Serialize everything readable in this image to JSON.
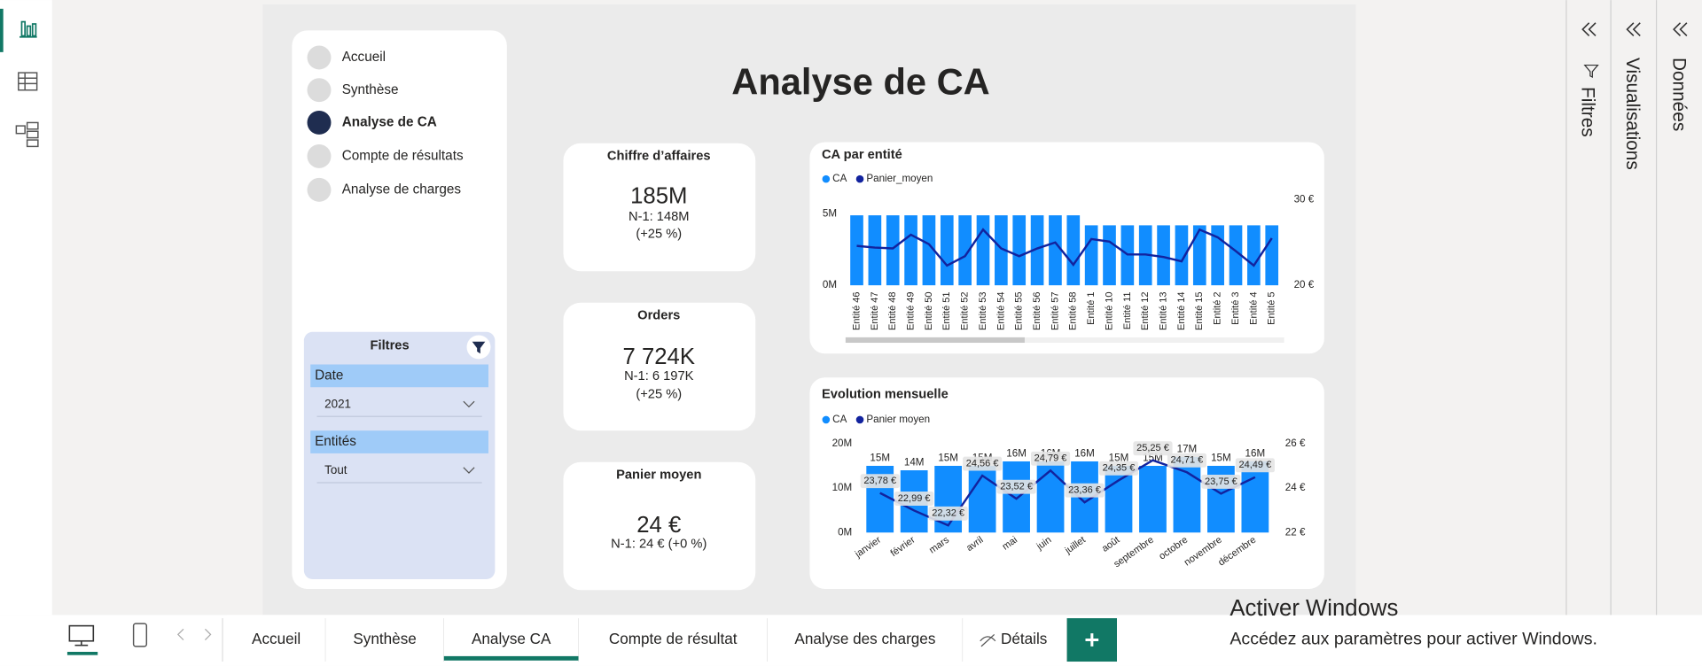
{
  "nav": {
    "items": [
      "Accueil",
      "Synthèse",
      "Analyse de CA",
      "Compte de résultats",
      "Analyse de charges"
    ],
    "active": 2
  },
  "title": "Analyse de CA",
  "filters": {
    "title": "Filtres",
    "fields": [
      {
        "label": "Date",
        "value": "2021"
      },
      {
        "label": "Entités",
        "value": "Tout"
      }
    ]
  },
  "kpis": [
    {
      "title": "Chiffre d’affaires",
      "value": "185M",
      "prior": "N-1: 148M",
      "change": "(+25 %)"
    },
    {
      "title": "Orders",
      "value": "7 724K",
      "prior": "N-1: 6 197K",
      "change": "(+25 %)"
    },
    {
      "title": "Panier moyen",
      "value": "24 €",
      "prior": "N-1: 24 € (+0 %)"
    }
  ],
  "chart_data": [
    {
      "type": "combo",
      "title": "CA par entité",
      "categories": [
        "Entité 46",
        "Entité 47",
        "Entité 48",
        "Entité 49",
        "Entité 50",
        "Entité 51",
        "Entité 52",
        "Entité 53",
        "Entité 54",
        "Entité 55",
        "Entité 56",
        "Entité 57",
        "Entité 58",
        "Entité 1",
        "Entité 10",
        "Entité 11",
        "Entité 12",
        "Entité 13",
        "Entité 14",
        "Entité 15",
        "Entité 2",
        "Entité 3",
        "Entité 4",
        "Entité 5"
      ],
      "series": [
        {
          "name": "CA",
          "type": "bar",
          "color": "#118dff",
          "values": [
            4.9,
            4.9,
            4.9,
            4.9,
            4.9,
            4.9,
            4.9,
            4.9,
            4.9,
            4.9,
            4.9,
            4.9,
            4.9,
            4.2,
            4.2,
            4.2,
            4.2,
            4.2,
            4.2,
            4.2,
            4.2,
            4.2,
            4.2,
            4.2
          ]
        },
        {
          "name": "Panier_moyen",
          "type": "line",
          "axis": "y2",
          "color": "#12239e",
          "values": [
            24.6,
            24.4,
            24.3,
            25.9,
            24.8,
            22.3,
            23.4,
            26.5,
            24.3,
            23.4,
            24.3,
            25,
            22.4,
            25.4,
            25.1,
            23.6,
            23.6,
            23.3,
            22.8,
            26.5,
            25.6,
            24,
            22.3,
            25.5
          ]
        }
      ],
      "ylim": [
        0,
        6
      ],
      "yticks": [
        {
          "value": 0,
          "label": "0M"
        },
        {
          "value": 5,
          "label": "5M"
        }
      ],
      "y2lim": [
        20,
        30
      ],
      "y2ticks": [
        {
          "value": 20,
          "label": "20 €"
        },
        {
          "value": 30,
          "label": "30 €"
        }
      ]
    },
    {
      "type": "combo",
      "title": "Evolution mensuelle",
      "categories": [
        "janvier",
        "février",
        "mars",
        "avril",
        "mai",
        "juin",
        "juillet",
        "août",
        "septembre",
        "octobre",
        "novembre",
        "décembre"
      ],
      "series": [
        {
          "name": "CA",
          "type": "bar",
          "color": "#118dff",
          "values": [
            15,
            14,
            15,
            15,
            16,
            16,
            16,
            15,
            15,
            17,
            15,
            16
          ],
          "value_labels": [
            "15M",
            "14M",
            "15M",
            "15M",
            "16M",
            "16M",
            "16M",
            "15M",
            "15M",
            "17M",
            "15M",
            "16M"
          ]
        },
        {
          "name": "Panier moyen",
          "type": "line",
          "axis": "y2",
          "color": "#12239e",
          "values": [
            23.78,
            22.99,
            22.32,
            24.56,
            23.52,
            24.79,
            23.36,
            24.35,
            25.25,
            24.71,
            23.75,
            24.49
          ],
          "value_labels": [
            "23,78 €",
            "22,99 €",
            "22,32 €",
            "24,56 €",
            "23,52 €",
            "24,79 €",
            "23,36 €",
            "24,35 €",
            "25,25 €",
            "24,71 €",
            "23,75 €",
            "24,49 €"
          ]
        }
      ],
      "ylim": [
        0,
        20
      ],
      "yticks": [
        {
          "value": 0,
          "label": "0M"
        },
        {
          "value": 10,
          "label": "10M"
        },
        {
          "value": 20,
          "label": "20M"
        }
      ],
      "y2lim": [
        22,
        26
      ],
      "y2ticks": [
        {
          "value": 22,
          "label": "22 €"
        },
        {
          "value": 24,
          "label": "24 €"
        },
        {
          "value": 26,
          "label": "26 €"
        }
      ]
    }
  ],
  "tabs": {
    "items": [
      "Accueil",
      "Synthèse",
      "Analyse CA",
      "Compte de résultat",
      "Analyse des charges",
      "Détails"
    ],
    "active": 2
  },
  "panes": [
    "Filtres",
    "Visualisations",
    "Données"
  ],
  "watermark": [
    "Activer Windows",
    "Accédez aux paramètres pour activer Windows."
  ]
}
